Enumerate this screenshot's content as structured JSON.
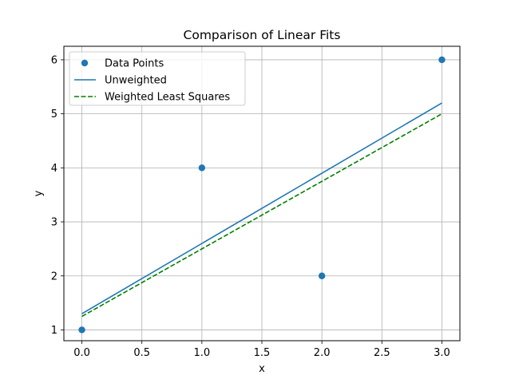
{
  "chart_data": {
    "type": "scatter",
    "title": "Comparison of Linear Fits",
    "xlabel": "x",
    "ylabel": "y",
    "xlim": [
      -0.15,
      3.15
    ],
    "ylim": [
      0.8,
      6.25
    ],
    "xticks": [
      0.0,
      0.5,
      1.0,
      1.5,
      2.0,
      2.5,
      3.0
    ],
    "xtick_labels": [
      "0.0",
      "0.5",
      "1.0",
      "1.5",
      "2.0",
      "2.5",
      "3.0"
    ],
    "yticks": [
      1,
      2,
      3,
      4,
      5,
      6
    ],
    "ytick_labels": [
      "1",
      "2",
      "3",
      "4",
      "5",
      "6"
    ],
    "grid": true,
    "legend_position": "top-left",
    "points": {
      "name": "Data Points",
      "color": "#1f77b4",
      "x": [
        0,
        1,
        2,
        3
      ],
      "y": [
        1,
        4,
        2,
        6
      ]
    },
    "lines": [
      {
        "name": "Unweighted",
        "color": "#1f77b4",
        "style": "solid",
        "x": [
          0,
          3
        ],
        "y": [
          1.3,
          5.2
        ]
      },
      {
        "name": "Weighted Least Squares",
        "color": "#008000",
        "style": "dashed",
        "x": [
          0,
          3
        ],
        "y": [
          1.25,
          5.0
        ]
      }
    ]
  }
}
